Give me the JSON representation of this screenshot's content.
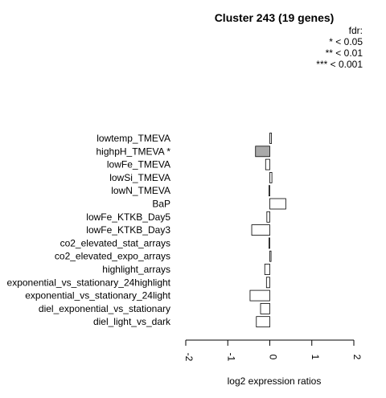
{
  "chart_data": {
    "type": "bar",
    "orientation": "horizontal",
    "title": "Cluster 243 (19 genes)",
    "xlabel": "log2 expression ratios",
    "ylabel": "",
    "xlim": [
      -2,
      2
    ],
    "xticks": [
      "-2",
      "-1",
      "0",
      "1",
      "2"
    ],
    "xtick_values": [
      -2,
      -1,
      0,
      1,
      2
    ],
    "grid": false,
    "legend_placement": "top-right",
    "legend": {
      "title": "fdr:",
      "entries": [
        "* < 0.05",
        "** < 0.01",
        "*** < 0.001"
      ]
    },
    "categories": [
      "lowtemp_TMEVA",
      "highpH_TMEVA *",
      "lowFe_TMEVA",
      "lowSi_TMEVA",
      "lowN_TMEVA",
      "BaP",
      "lowFe_KTKB_Day5",
      "lowFe_KTKB_Day3",
      "co2_elevated_stat_arrays",
      "co2_elevated_expo_arrays",
      "highlight_arrays",
      "exponential_vs_stationary_24highlight",
      "exponential_vs_stationary_24light",
      "diel_exponential_vs_stationary",
      "diel_light_vs_dark"
    ],
    "values": [
      0.04,
      -0.34,
      -0.1,
      0.05,
      -0.02,
      0.38,
      -0.07,
      -0.43,
      -0.02,
      0.03,
      -0.12,
      -0.08,
      -0.47,
      -0.22,
      -0.32
    ],
    "significant": [
      false,
      true,
      false,
      false,
      false,
      false,
      false,
      false,
      false,
      false,
      false,
      false,
      false,
      false,
      false
    ],
    "colors": {
      "bar_default": "#ffffff",
      "bar_significant": "#a9a9a9",
      "stroke": "#000000"
    }
  }
}
